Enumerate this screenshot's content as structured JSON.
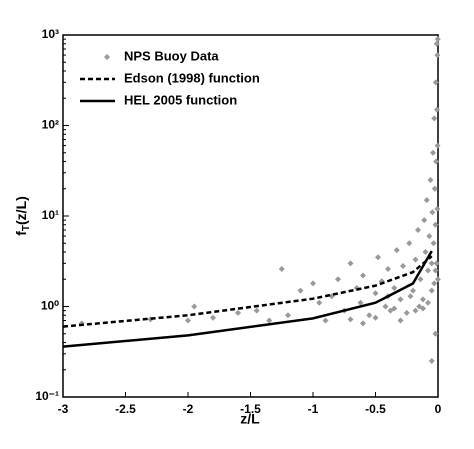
{
  "chart_data": {
    "type": "scatter-line",
    "x_label": "z/L",
    "y_label": [
      "f",
      "T",
      "(z/L)"
    ],
    "xlim": [
      -3,
      0
    ],
    "xticks": [
      -3,
      -2.5,
      -2,
      -1.5,
      -1,
      -0.5,
      0
    ],
    "ylim": [
      0.1,
      1000
    ],
    "log_y": true,
    "yticks": [
      {
        "value": 0.1,
        "label": "10⁻¹"
      },
      {
        "value": 1,
        "label": "10⁰"
      },
      {
        "value": 10,
        "label": "10¹"
      },
      {
        "value": 100,
        "label": "10²"
      },
      {
        "value": 1000,
        "label": "10³"
      }
    ],
    "legend": "upper-left",
    "series": [
      {
        "name": "NPS Buoy Data",
        "kind": "scatter",
        "color": "#999999",
        "x": [
          -2.85,
          -2.3,
          -1.95,
          -1.8,
          -1.6,
          -1.45,
          -1.25,
          -1.2,
          -1.1,
          -1.0,
          -0.95,
          -0.9,
          -0.85,
          -0.8,
          -0.75,
          -0.7,
          -0.65,
          -0.62,
          -0.6,
          -0.55,
          -0.5,
          -0.48,
          -0.45,
          -0.42,
          -0.4,
          -0.38,
          -0.35,
          -0.33,
          -0.3,
          -0.28,
          -0.25,
          -0.23,
          -0.2,
          -0.18,
          -0.16,
          -0.14,
          -0.12,
          -0.11,
          -0.1,
          -0.09,
          -0.08,
          -0.07,
          -0.06,
          -0.05,
          -0.045,
          -0.04,
          -0.035,
          -0.03,
          -0.025,
          -0.02,
          -0.018,
          -0.015,
          -0.012,
          -0.01,
          -0.008,
          -0.006,
          -0.005,
          -0.004,
          -0.002,
          -0.001,
          -0.3,
          -0.6,
          -0.15,
          -0.22,
          -0.4,
          -0.12,
          -0.08,
          -0.05,
          -0.03,
          -0.02,
          -0.5,
          -0.7,
          -0.35,
          -0.18,
          -1.35,
          -0.02,
          -0.05,
          -2.0
        ],
        "values": [
          0.65,
          0.72,
          1.0,
          0.75,
          0.85,
          0.9,
          2.6,
          0.8,
          1.5,
          1.8,
          1.1,
          0.7,
          1.3,
          2.0,
          0.9,
          3.0,
          1.6,
          1.1,
          2.2,
          0.8,
          1.4,
          3.5,
          1.9,
          1.0,
          2.6,
          0.9,
          1.6,
          4.2,
          1.2,
          2.8,
          0.85,
          5.0,
          1.5,
          3.3,
          7.0,
          2.0,
          1.2,
          9.0,
          4.0,
          15,
          2.5,
          6,
          25,
          3,
          11,
          50,
          5,
          120,
          20,
          8,
          300,
          40,
          3,
          800,
          150,
          12,
          600,
          60,
          900,
          2,
          0.7,
          0.65,
          1.0,
          1.3,
          1.3,
          0.95,
          1.1,
          1.5,
          1.8,
          2.5,
          0.75,
          0.72,
          0.95,
          0.9,
          0.7,
          0.5,
          0.25,
          0.7
        ]
      },
      {
        "name": "Edson (1998) function",
        "kind": "line",
        "color": "#000000",
        "dash": true,
        "x": [
          -3,
          -2,
          -1,
          -0.5,
          -0.2,
          -0.05
        ],
        "values": [
          0.6,
          0.8,
          1.22,
          1.7,
          2.4,
          3.6
        ]
      },
      {
        "name": "HEL 2005 function",
        "kind": "line",
        "color": "#000000",
        "dash": false,
        "x": [
          -3,
          -2,
          -1,
          -0.5,
          -0.2,
          -0.05
        ],
        "values": [
          0.36,
          0.48,
          0.74,
          1.1,
          1.8,
          4.1
        ]
      }
    ]
  }
}
